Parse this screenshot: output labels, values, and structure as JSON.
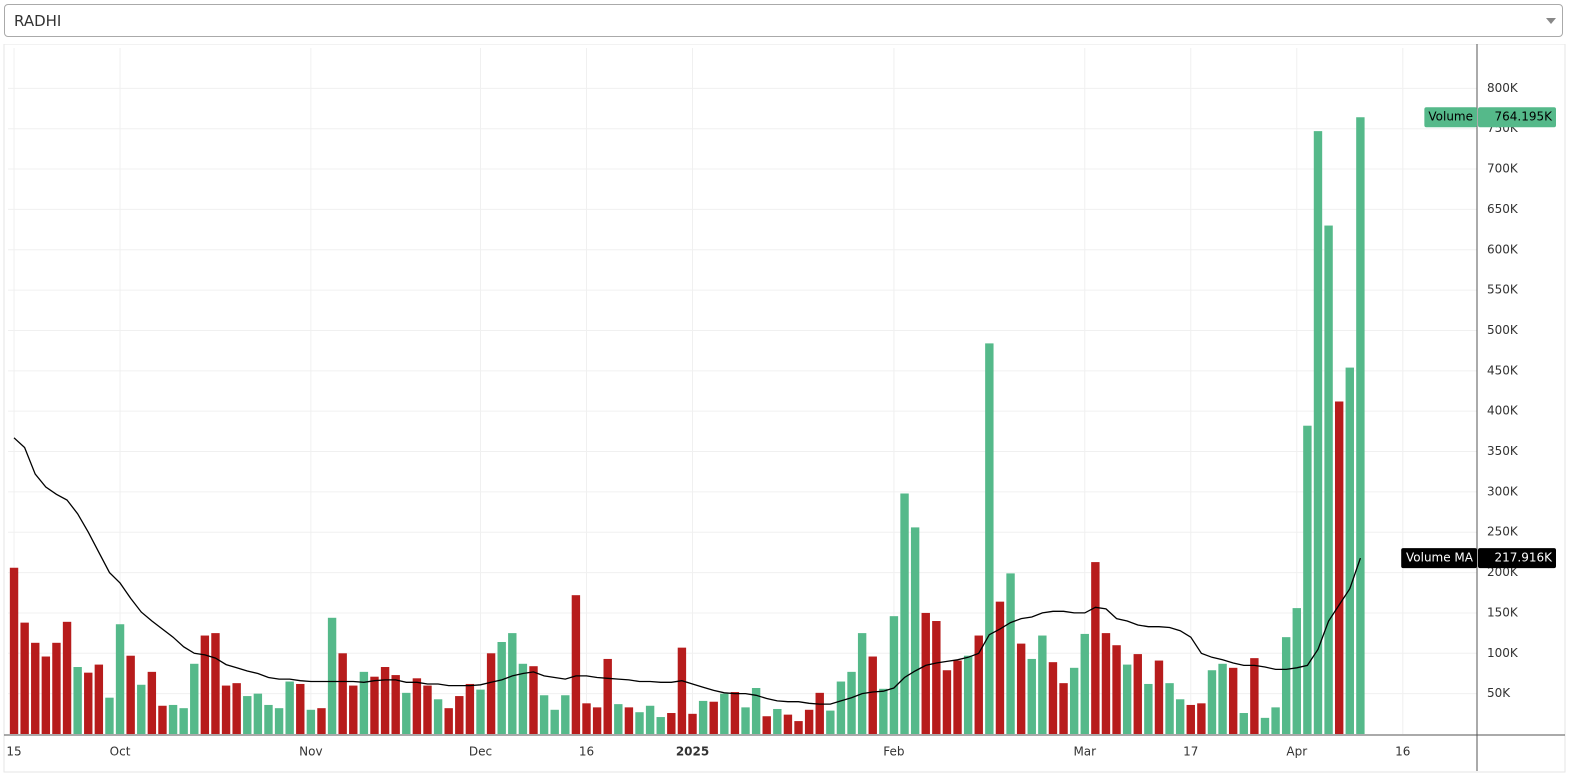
{
  "symbol": "RADHI",
  "chart_data": {
    "type": "bar",
    "xlim": [
      -0.57,
      138.0
    ],
    "xticks": [
      {
        "value": 0,
        "label": "15"
      },
      {
        "value": 10,
        "label": "Oct"
      },
      {
        "value": 28,
        "label": "Nov"
      },
      {
        "value": 44,
        "label": "Dec"
      },
      {
        "value": 54,
        "label": "16"
      },
      {
        "value": 64,
        "label": "2025",
        "bold": true
      },
      {
        "value": 83,
        "label": "Feb"
      },
      {
        "value": 101,
        "label": "Mar"
      },
      {
        "value": 111,
        "label": "17"
      },
      {
        "value": 121,
        "label": "Apr"
      },
      {
        "value": 131,
        "label": "16"
      }
    ],
    "ylim": [
      0,
      850
    ],
    "yticks": [
      {
        "value": 50,
        "label": "50K"
      },
      {
        "value": 100,
        "label": "100K"
      },
      {
        "value": 150,
        "label": "150K"
      },
      {
        "value": 200,
        "label": "200K"
      },
      {
        "value": 250,
        "label": "250K"
      },
      {
        "value": 300,
        "label": "300K"
      },
      {
        "value": 350,
        "label": "350K"
      },
      {
        "value": 400,
        "label": "400K"
      },
      {
        "value": 450,
        "label": "450K"
      },
      {
        "value": 500,
        "label": "500K"
      },
      {
        "value": 550,
        "label": "550K"
      },
      {
        "value": 600,
        "label": "600K"
      },
      {
        "value": 650,
        "label": "650K"
      },
      {
        "value": 700,
        "label": "700K"
      },
      {
        "value": 750,
        "label": "750K"
      },
      {
        "value": 800,
        "label": "800K"
      }
    ],
    "grid": true,
    "series": [
      {
        "name": "Volume",
        "type": "bar",
        "values": [
          206,
          138,
          113,
          96,
          113,
          139,
          83,
          76,
          86,
          45,
          136,
          97,
          61,
          77,
          35,
          36,
          32,
          87,
          122,
          125,
          60,
          63,
          47,
          50,
          36,
          32,
          65,
          62,
          30,
          32,
          144,
          100,
          60,
          77,
          71,
          83,
          73,
          51,
          69,
          60,
          43,
          32,
          47,
          62,
          55,
          100,
          114,
          125,
          87,
          84,
          48,
          30,
          48,
          172,
          38,
          33,
          93,
          37,
          33,
          27,
          35,
          21,
          26,
          107,
          25,
          41,
          40,
          50,
          52,
          33,
          57,
          22,
          31,
          24,
          16,
          30,
          51,
          29,
          65,
          77,
          125,
          96,
          56,
          146,
          298,
          256,
          150,
          140,
          79,
          91,
          97,
          122,
          484,
          164,
          199,
          112,
          93,
          122,
          89,
          63,
          82,
          124,
          213,
          125,
          110,
          86,
          99,
          62,
          91,
          63,
          43,
          36,
          38,
          79,
          87,
          82,
          26,
          94,
          20,
          33,
          120,
          156,
          382,
          747,
          630,
          412,
          454,
          764.195
        ],
        "colors": [
          "#b71c1c",
          "#b71c1c",
          "#b71c1c",
          "#b71c1c",
          "#b71c1c",
          "#b71c1c",
          "#55b98a",
          "#b71c1c",
          "#b71c1c",
          "#55b98a",
          "#55b98a",
          "#b71c1c",
          "#55b98a",
          "#b71c1c",
          "#b71c1c",
          "#55b98a",
          "#55b98a",
          "#55b98a",
          "#b71c1c",
          "#b71c1c",
          "#b71c1c",
          "#b71c1c",
          "#55b98a",
          "#55b98a",
          "#55b98a",
          "#55b98a",
          "#55b98a",
          "#b71c1c",
          "#55b98a",
          "#b71c1c",
          "#55b98a",
          "#b71c1c",
          "#b71c1c",
          "#55b98a",
          "#b71c1c",
          "#b71c1c",
          "#b71c1c",
          "#55b98a",
          "#b71c1c",
          "#b71c1c",
          "#55b98a",
          "#b71c1c",
          "#b71c1c",
          "#b71c1c",
          "#55b98a",
          "#b71c1c",
          "#55b98a",
          "#55b98a",
          "#55b98a",
          "#b71c1c",
          "#55b98a",
          "#55b98a",
          "#55b98a",
          "#b71c1c",
          "#b71c1c",
          "#b71c1c",
          "#b71c1c",
          "#55b98a",
          "#b71c1c",
          "#55b98a",
          "#55b98a",
          "#55b98a",
          "#b71c1c",
          "#b71c1c",
          "#b71c1c",
          "#55b98a",
          "#b71c1c",
          "#55b98a",
          "#b71c1c",
          "#55b98a",
          "#55b98a",
          "#b71c1c",
          "#55b98a",
          "#b71c1c",
          "#b71c1c",
          "#b71c1c",
          "#b71c1c",
          "#55b98a",
          "#55b98a",
          "#55b98a",
          "#55b98a",
          "#b71c1c",
          "#55b98a",
          "#55b98a",
          "#55b98a",
          "#55b98a",
          "#b71c1c",
          "#b71c1c",
          "#b71c1c",
          "#b71c1c",
          "#55b98a",
          "#b71c1c",
          "#55b98a",
          "#b71c1c",
          "#55b98a",
          "#b71c1c",
          "#55b98a",
          "#55b98a",
          "#b71c1c",
          "#b71c1c",
          "#55b98a",
          "#55b98a",
          "#b71c1c",
          "#b71c1c",
          "#b71c1c",
          "#55b98a",
          "#b71c1c",
          "#55b98a",
          "#b71c1c",
          "#55b98a",
          "#55b98a",
          "#b71c1c",
          "#b71c1c",
          "#55b98a",
          "#55b98a",
          "#b71c1c",
          "#55b98a",
          "#b71c1c",
          "#55b98a",
          "#55b98a",
          "#55b98a",
          "#55b98a",
          "#55b98a",
          "#55b98a",
          "#55b98a",
          "#b71c1c",
          "#55b98a",
          "#55b98a"
        ],
        "value_labels": [
          null,
          null,
          null,
          null,
          null,
          null,
          null,
          null,
          null,
          null,
          null,
          null,
          null,
          null,
          null,
          null,
          null,
          null,
          null,
          null,
          null,
          null,
          null,
          null,
          null,
          null,
          null,
          null,
          null,
          null,
          null,
          null,
          null,
          null,
          null,
          null,
          null,
          null,
          null,
          null,
          null,
          null,
          null,
          null,
          null,
          null,
          null,
          null,
          null,
          null,
          null,
          null,
          null,
          null,
          null,
          null,
          null,
          null,
          null,
          null,
          null,
          null,
          null,
          null,
          null,
          null,
          null,
          null,
          null,
          null,
          null,
          null,
          null,
          null,
          null,
          null,
          null,
          null,
          null,
          null,
          null,
          null,
          null,
          null,
          null,
          null,
          null,
          null,
          null,
          null,
          null,
          null,
          null,
          null,
          null,
          null,
          null,
          null,
          null,
          null,
          null,
          null,
          null,
          null,
          null,
          null,
          null,
          null,
          null,
          null,
          null,
          null,
          null,
          null,
          null,
          null,
          null,
          null,
          null,
          null,
          null,
          null,
          null,
          null,
          null,
          null,
          null,
          "764.195K"
        ]
      },
      {
        "name": "Volume MA",
        "type": "line",
        "color": "#000000",
        "values": [
          367,
          355,
          322,
          306,
          297,
          290,
          273,
          250,
          225,
          200,
          187,
          168,
          151,
          140,
          130,
          120,
          108,
          100,
          98,
          94,
          86,
          82,
          78,
          75,
          70,
          68,
          68,
          66,
          65,
          65,
          65,
          65,
          65,
          64,
          66,
          67,
          67,
          64,
          64,
          62,
          62,
          60,
          60,
          60,
          61,
          64,
          67,
          72,
          75,
          77,
          72,
          70,
          68,
          72,
          72,
          70,
          69,
          68,
          67,
          65,
          65,
          64,
          64,
          66,
          62,
          58,
          54,
          51,
          50,
          50,
          48,
          44,
          41,
          40,
          40,
          38,
          37,
          37,
          41,
          45,
          50,
          52,
          53,
          57,
          70,
          78,
          85,
          88,
          90,
          92,
          95,
          100,
          123,
          130,
          138,
          143,
          145,
          150,
          152,
          152,
          150,
          150,
          157,
          155,
          143,
          140,
          135,
          133,
          133,
          132,
          128,
          120,
          100,
          95,
          92,
          88,
          85,
          85,
          83,
          80,
          80,
          82,
          85,
          105,
          140,
          160,
          180,
          217.916
        ],
        "value_labels": [
          null,
          null,
          null,
          null,
          null,
          null,
          null,
          null,
          null,
          null,
          null,
          null,
          null,
          null,
          null,
          null,
          null,
          null,
          null,
          null,
          null,
          null,
          null,
          null,
          null,
          null,
          null,
          null,
          null,
          null,
          null,
          null,
          null,
          null,
          null,
          null,
          null,
          null,
          null,
          null,
          null,
          null,
          null,
          null,
          null,
          null,
          null,
          null,
          null,
          null,
          null,
          null,
          null,
          null,
          null,
          null,
          null,
          null,
          null,
          null,
          null,
          null,
          null,
          null,
          null,
          null,
          null,
          null,
          null,
          null,
          null,
          null,
          null,
          null,
          null,
          null,
          null,
          null,
          null,
          null,
          null,
          null,
          null,
          null,
          null,
          null,
          null,
          null,
          null,
          null,
          null,
          null,
          null,
          null,
          null,
          null,
          null,
          null,
          null,
          null,
          null,
          null,
          null,
          null,
          null,
          null,
          null,
          null,
          null,
          null,
          null,
          null,
          null,
          null,
          null,
          null,
          null,
          null,
          null,
          null,
          null,
          null,
          null,
          null,
          null,
          null,
          null,
          "217.916K"
        ]
      }
    ]
  }
}
